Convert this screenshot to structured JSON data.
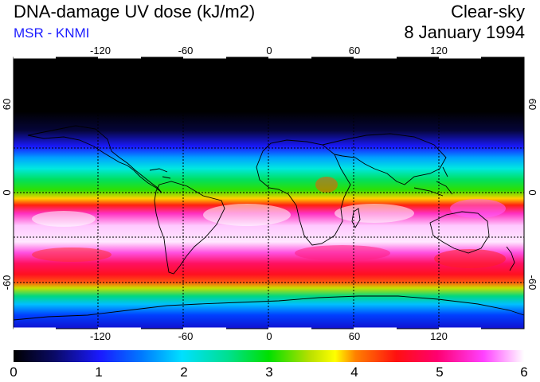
{
  "header": {
    "title": "DNA-damage UV dose (kJ/m2)",
    "source": "MSR - KNMI",
    "condition": "Clear-sky",
    "date": "8 January 1994"
  },
  "map": {
    "projection": "equirectangular",
    "lon_ticks": [
      "-120",
      "-60",
      "0",
      "60",
      "120"
    ],
    "lat_ticks": [
      "60",
      "0",
      "-60"
    ],
    "lat_ticks_right": [
      "60",
      "0",
      "-60"
    ]
  },
  "colorbar": {
    "labels": [
      "0",
      "1",
      "2",
      "3",
      "4",
      "5",
      "6"
    ],
    "min": 0,
    "max": 6
  },
  "colors": {
    "subtitle": "#1a1aff",
    "coast": "#000000"
  }
}
